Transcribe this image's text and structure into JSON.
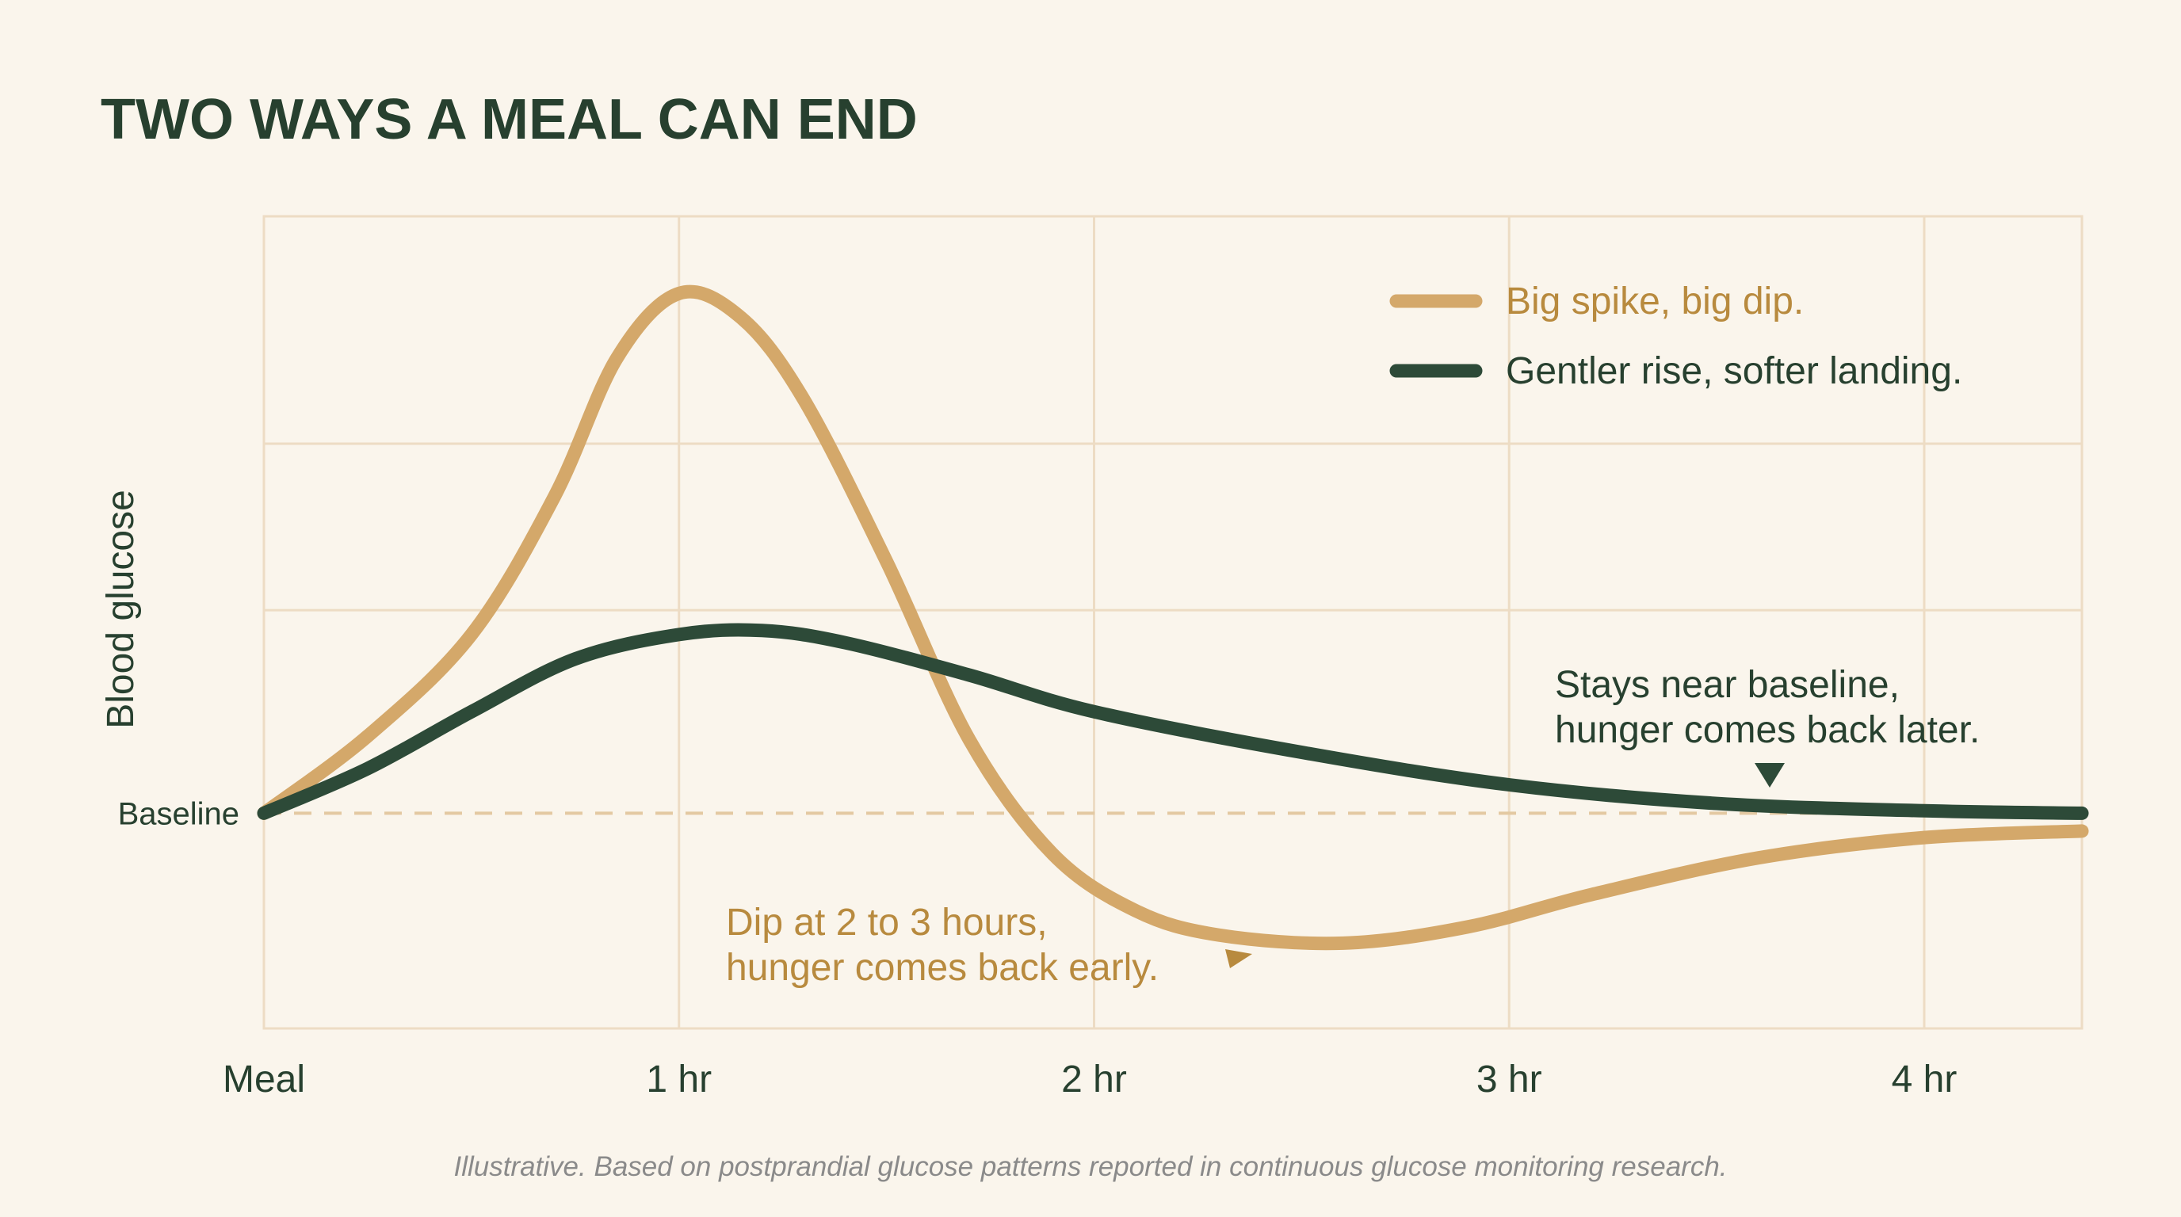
{
  "colors": {
    "background": "#faf5ec",
    "grid": "#eddcc4",
    "baseline": "#e3c9a2",
    "spike": "#d4a86a",
    "spike_text": "#b88a3e",
    "gentle": "#2d4a38",
    "dark_text": "#27402f",
    "footnote": "#8a8a8a"
  },
  "chart_data": {
    "type": "line",
    "title": "TWO WAYS A MEAL CAN END",
    "ylabel": "Blood glucose",
    "xlabel": "",
    "x_ticks": [
      {
        "x": 0,
        "label": "Meal"
      },
      {
        "x": 1,
        "label": "1 hr"
      },
      {
        "x": 2,
        "label": "2 hr"
      },
      {
        "x": 3,
        "label": "3 hr"
      },
      {
        "x": 4,
        "label": "4 hr"
      }
    ],
    "xlim": [
      0,
      4.38
    ],
    "ylim": [
      -2.65,
      7.35
    ],
    "y_gridlines": [
      2.5,
      4.55
    ],
    "y_ticks": [
      {
        "y": 0,
        "label": "Baseline"
      }
    ],
    "grid": true,
    "legend_position": "top-right",
    "series": [
      {
        "name": "Big spike, big dip.",
        "color": "#d4a86a",
        "points": [
          [
            0,
            0
          ],
          [
            0.25,
            0.95
          ],
          [
            0.5,
            2.2
          ],
          [
            0.7,
            3.9
          ],
          [
            0.85,
            5.6
          ],
          [
            1,
            6.4
          ],
          [
            1.15,
            6.1
          ],
          [
            1.3,
            5.1
          ],
          [
            1.5,
            3.1
          ],
          [
            1.7,
            0.9
          ],
          [
            1.9,
            -0.5
          ],
          [
            2.1,
            -1.2
          ],
          [
            2.3,
            -1.5
          ],
          [
            2.6,
            -1.6
          ],
          [
            2.9,
            -1.4
          ],
          [
            3.2,
            -1.0
          ],
          [
            3.6,
            -0.55
          ],
          [
            4.0,
            -0.3
          ],
          [
            4.38,
            -0.22
          ]
        ]
      },
      {
        "name": "Gentler rise, softer landing.",
        "color": "#2d4a38",
        "points": [
          [
            0,
            0
          ],
          [
            0.25,
            0.55
          ],
          [
            0.5,
            1.25
          ],
          [
            0.75,
            1.9
          ],
          [
            1,
            2.2
          ],
          [
            1.2,
            2.25
          ],
          [
            1.4,
            2.1
          ],
          [
            1.7,
            1.7
          ],
          [
            2,
            1.25
          ],
          [
            2.5,
            0.75
          ],
          [
            3,
            0.35
          ],
          [
            3.5,
            0.12
          ],
          [
            4,
            0.03
          ],
          [
            4.38,
            0
          ]
        ]
      }
    ],
    "annotations": [
      {
        "text": [
          "Dip at 2 to 3 hours,",
          "hunger comes back early."
        ],
        "series": 0,
        "target_x": 2.4,
        "target_y": -1.6
      },
      {
        "text": [
          "Stays near baseline,",
          "hunger comes back later."
        ],
        "series": 1,
        "target_x": 3.6,
        "target_y": 0.12
      }
    ],
    "footnote": "Illustrative. Based on postprandial glucose patterns reported in continuous glucose monitoring research."
  }
}
